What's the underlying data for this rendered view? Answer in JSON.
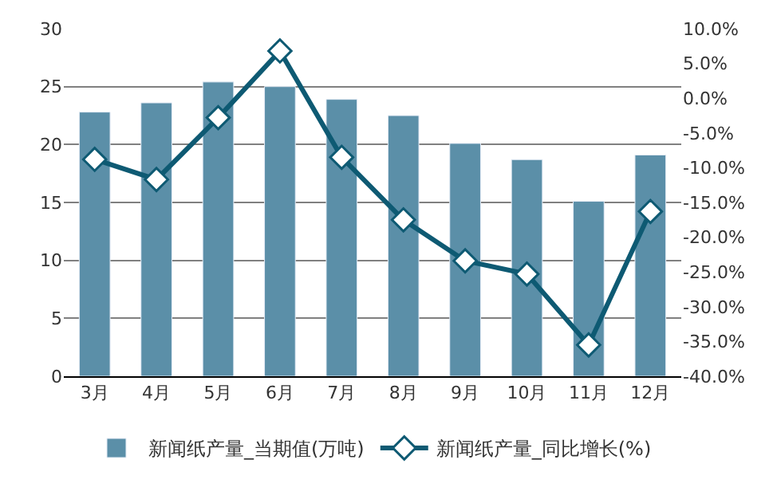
{
  "chart_data": {
    "type": "bar",
    "categories": [
      "3月",
      "4月",
      "5月",
      "6月",
      "7月",
      "8月",
      "9月",
      "10月",
      "11月",
      "12月"
    ],
    "series": [
      {
        "name": "新闻纸产量_当期值(万吨)",
        "color": "#5b8fa8",
        "values": [
          22.8,
          23.6,
          25.4,
          25.0,
          23.9,
          22.5,
          20.1,
          18.7,
          15.1,
          19.1
        ]
      },
      {
        "name": "新闻纸产量_同比增长(%)",
        "type": "line",
        "axis": "y2",
        "color": "#0e5a73",
        "marker": "diamond",
        "values": [
          -8.8,
          -11.7,
          -2.8,
          6.8,
          -8.5,
          -17.5,
          -23.4,
          -25.3,
          -35.5,
          -16.3
        ]
      }
    ],
    "ylim": [
      0,
      30
    ],
    "yticks": [
      0,
      5,
      10,
      15,
      20,
      25,
      30
    ],
    "y2lim": [
      -40,
      10
    ],
    "y2ticks": [
      {
        "value": -40,
        "label": "-40.0%"
      },
      {
        "value": -35,
        "label": "-35.0%"
      },
      {
        "value": -30,
        "label": "-30.0%"
      },
      {
        "value": -25,
        "label": "-25.0%"
      },
      {
        "value": -20,
        "label": "-20.0%"
      },
      {
        "value": -15,
        "label": "-15.0%"
      },
      {
        "value": -10,
        "label": "-10.0%"
      },
      {
        "value": -5,
        "label": "-5.0%"
      },
      {
        "value": 0,
        "label": "0.0%"
      },
      {
        "value": 5,
        "label": "5.0%"
      },
      {
        "value": 10,
        "label": "10.0%"
      }
    ],
    "grid": "y",
    "legend": "bottom"
  }
}
